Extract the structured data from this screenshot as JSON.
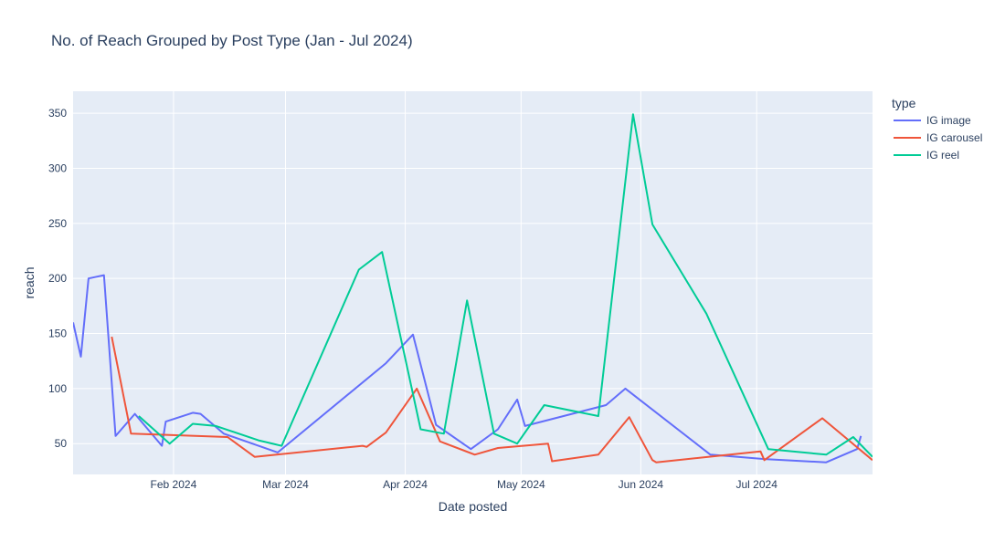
{
  "chart_data": {
    "type": "line",
    "title": "No. of Reach Grouped by Post Type (Jan - Jul 2024)",
    "xlabel": "Date posted",
    "ylabel": "reach",
    "xlim": [
      "2024-01-06",
      "2024-07-31"
    ],
    "ylim": [
      22,
      370
    ],
    "x_ticks": [
      {
        "date": "2024-02-01",
        "label": "Feb 2024"
      },
      {
        "date": "2024-03-01",
        "label": "Mar 2024"
      },
      {
        "date": "2024-04-01",
        "label": "Apr 2024"
      },
      {
        "date": "2024-05-01",
        "label": "May 2024"
      },
      {
        "date": "2024-06-01",
        "label": "Jun 2024"
      },
      {
        "date": "2024-07-01",
        "label": "Jul 2024"
      }
    ],
    "y_ticks": [
      50,
      100,
      150,
      200,
      250,
      300,
      350
    ],
    "grid": true,
    "plot_background": "#E5ECF6",
    "legend": {
      "title": "type",
      "position": "right"
    },
    "series": [
      {
        "name": "IG image",
        "color": "#636EFA",
        "points": [
          [
            "2024-01-06",
            160
          ],
          [
            "2024-01-08",
            129
          ],
          [
            "2024-01-10",
            200
          ],
          [
            "2024-01-14",
            203
          ],
          [
            "2024-01-17",
            57
          ],
          [
            "2024-01-22",
            77
          ],
          [
            "2024-01-29",
            48
          ],
          [
            "2024-01-30",
            70
          ],
          [
            "2024-02-06",
            78
          ],
          [
            "2024-02-08",
            77
          ],
          [
            "2024-02-14",
            59
          ],
          [
            "2024-02-28",
            42
          ],
          [
            "2024-03-27",
            123
          ],
          [
            "2024-04-03",
            149
          ],
          [
            "2024-04-09",
            67
          ],
          [
            "2024-04-18",
            45
          ],
          [
            "2024-04-25",
            63
          ],
          [
            "2024-04-30",
            90
          ],
          [
            "2024-05-02",
            66
          ],
          [
            "2024-05-23",
            85
          ],
          [
            "2024-05-28",
            100
          ],
          [
            "2024-06-19",
            40
          ],
          [
            "2024-07-03",
            36
          ],
          [
            "2024-07-19",
            33
          ],
          [
            "2024-07-27",
            45
          ],
          [
            "2024-07-28",
            57
          ]
        ]
      },
      {
        "name": "IG carousel",
        "color": "#EF553B",
        "points": [
          [
            "2024-01-16",
            147
          ],
          [
            "2024-01-21",
            59
          ],
          [
            "2024-02-15",
            56
          ],
          [
            "2024-02-22",
            38
          ],
          [
            "2024-03-21",
            48
          ],
          [
            "2024-03-22",
            47
          ],
          [
            "2024-03-27",
            60
          ],
          [
            "2024-04-04",
            100
          ],
          [
            "2024-04-10",
            52
          ],
          [
            "2024-04-19",
            40
          ],
          [
            "2024-04-25",
            46
          ],
          [
            "2024-05-08",
            50
          ],
          [
            "2024-05-09",
            34
          ],
          [
            "2024-05-21",
            40
          ],
          [
            "2024-05-29",
            74
          ],
          [
            "2024-06-04",
            35
          ],
          [
            "2024-06-05",
            33
          ],
          [
            "2024-07-02",
            43
          ],
          [
            "2024-07-03",
            35
          ],
          [
            "2024-07-18",
            73
          ],
          [
            "2024-07-31",
            35
          ]
        ]
      },
      {
        "name": "IG reel",
        "color": "#00CC96",
        "points": [
          [
            "2024-01-23",
            75
          ],
          [
            "2024-01-31",
            50
          ],
          [
            "2024-02-06",
            68
          ],
          [
            "2024-02-12",
            66
          ],
          [
            "2024-02-23",
            53
          ],
          [
            "2024-02-29",
            48
          ],
          [
            "2024-03-20",
            208
          ],
          [
            "2024-03-26",
            224
          ],
          [
            "2024-04-05",
            63
          ],
          [
            "2024-04-11",
            59
          ],
          [
            "2024-04-17",
            180
          ],
          [
            "2024-04-24",
            59
          ],
          [
            "2024-04-30",
            50
          ],
          [
            "2024-05-07",
            85
          ],
          [
            "2024-05-21",
            75
          ],
          [
            "2024-05-30",
            349
          ],
          [
            "2024-06-04",
            249
          ],
          [
            "2024-06-18",
            168
          ],
          [
            "2024-07-04",
            45
          ],
          [
            "2024-07-19",
            40
          ],
          [
            "2024-07-26",
            56
          ],
          [
            "2024-07-31",
            38
          ]
        ]
      }
    ]
  }
}
